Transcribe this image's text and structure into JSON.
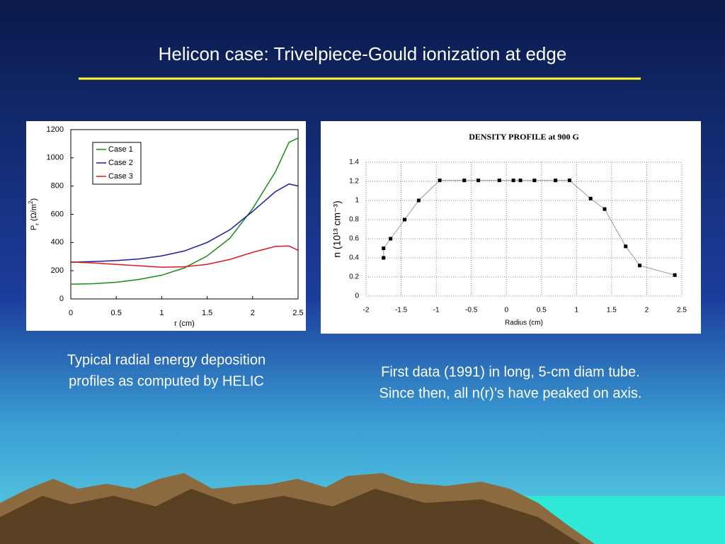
{
  "slide": {
    "title": "Helicon case:  Trivelpiece-Gould ionization at edge",
    "caption_left": [
      "Typical radial energy deposition",
      "profiles as computed by HELIC"
    ],
    "caption_right": [
      "First data (1991) in long, 5-cm diam tube.",
      "Since then, all n(r)’s have peaked on axis."
    ]
  },
  "chart_data": [
    {
      "type": "line",
      "xlabel": "r (cm)",
      "ylabel_parts": [
        {
          "text": "P"
        },
        {
          "text": "r",
          "style": "sub"
        },
        {
          "text": " (Ω/m"
        },
        {
          "text": "2",
          "style": "sup"
        },
        {
          "text": ")"
        }
      ],
      "x": [
        0,
        0.25,
        0.5,
        0.75,
        1,
        1.25,
        1.5,
        1.75,
        2,
        2.25,
        2.4,
        2.5
      ],
      "series": [
        {
          "name": "Case 1",
          "color": "#1a8a1a",
          "values": [
            105,
            108,
            118,
            138,
            168,
            220,
            305,
            430,
            640,
            900,
            1110,
            1140
          ]
        },
        {
          "name": "Case 2",
          "color": "#1a1aaa",
          "values": [
            260,
            265,
            272,
            283,
            305,
            340,
            400,
            490,
            620,
            760,
            815,
            800
          ]
        },
        {
          "name": "Case 3",
          "color": "#dd1a1a",
          "values": [
            262,
            255,
            245,
            235,
            225,
            228,
            245,
            280,
            330,
            372,
            375,
            345
          ]
        }
      ],
      "xlim": [
        0,
        2.5
      ],
      "xticks": [
        0,
        0.5,
        1,
        1.5,
        2,
        2.5
      ],
      "ylim": [
        0,
        1200
      ],
      "yticks": [
        0,
        200,
        400,
        600,
        800,
        1000,
        1200
      ],
      "grid": false,
      "legend": "upper-left"
    },
    {
      "type": "scatter",
      "title": "DENSITY PROFILE at 900 G",
      "xlabel": "Radius (cm)",
      "ylabel": "n (10¹³ cm⁻³)",
      "series": [
        {
          "color": "#000000",
          "line_color": "#999999",
          "x": [
            -1.75,
            -1.75,
            -1.65,
            -1.45,
            -1.25,
            -0.95,
            -0.6,
            -0.4,
            -0.1,
            0.1,
            0.2,
            0.4,
            0.7,
            0.9,
            1.2,
            1.4,
            1.7,
            1.9,
            2.4
          ],
          "values": [
            0.4,
            0.5,
            0.6,
            0.8,
            1.0,
            1.21,
            1.21,
            1.21,
            1.21,
            1.21,
            1.21,
            1.21,
            1.21,
            1.21,
            1.02,
            0.91,
            0.52,
            0.32,
            0.22
          ]
        }
      ],
      "xlim": [
        -2,
        2.5
      ],
      "xticks": [
        -2,
        -1.5,
        -1,
        -0.5,
        0,
        0.5,
        1,
        1.5,
        2,
        2.5
      ],
      "ylim": [
        0,
        1.4
      ],
      "yticks": [
        0,
        0.2,
        0.4,
        0.6,
        0.8,
        1,
        1.2,
        1.4
      ],
      "grid": true
    }
  ]
}
